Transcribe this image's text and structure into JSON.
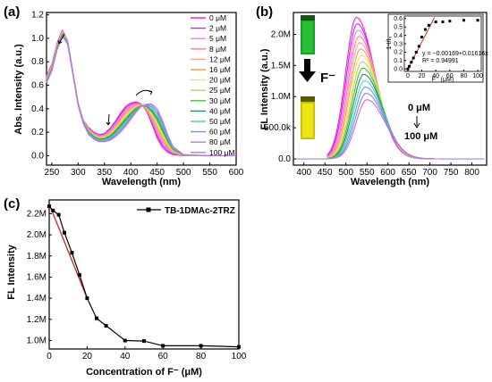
{
  "panels": {
    "a": "(a)",
    "b": "(b)",
    "c": "(c)"
  },
  "colors": {
    "series": [
      "#ff1dce",
      "#ce1dff",
      "#ef7cf3",
      "#ff7f7f",
      "#f5a3a3",
      "#e8a44a",
      "#f0e26c",
      "#a4e24a",
      "#4bb84b",
      "#1f8f5f",
      "#58d0c8",
      "#4fa8e8",
      "#9a86e0",
      "#c070e0"
    ],
    "line_c": "#000000",
    "fit_line": "#c0392b",
    "vial_top": "#22aa22",
    "vial_bottom": "#d8d000"
  },
  "fluoride_label": "F⁻",
  "ann_b": {
    "top": "0 μM",
    "bottom": "100 μM"
  },
  "chart_data": [
    {
      "panel": "a",
      "type": "line",
      "xlabel": "Wavelength (nm)",
      "ylabel": "Abs. Intensity (a.u.)",
      "xlim": [
        240,
        600
      ],
      "ylim": [
        -0.08,
        1.22
      ],
      "xticks": [
        250,
        300,
        350,
        400,
        450,
        500,
        550,
        600
      ],
      "yticks": [
        0.0,
        0.2,
        0.4,
        0.6,
        0.8,
        1.0,
        1.2
      ],
      "ytick_labels": [
        "0.0",
        "0.2",
        "0.4",
        "0.6",
        "0.8",
        "1.0",
        "1.2"
      ],
      "legend": [
        "0 μM",
        "2 μM",
        "5 μM",
        "8 μM",
        "12 μM",
        "16 μM",
        "20 μM",
        "25 μM",
        "30 μM",
        "40 μM",
        "50 μM",
        "60 μM",
        "80 μM",
        "100 μM"
      ],
      "legend_position": "right",
      "series_description": "14 absorption spectra; main band ~270 nm (~1.05), CT band shifts from ~410 nm to ~440 nm with F⁻ addition",
      "series": [
        {
          "name": "0 μM",
          "x": [
            240,
            250,
            260,
            270,
            280,
            290,
            300,
            310,
            320,
            330,
            340,
            350,
            360,
            370,
            380,
            390,
            400,
            410,
            420,
            430,
            440,
            450,
            460,
            470,
            480,
            500,
            550,
            600
          ],
          "values": [
            0.68,
            0.78,
            0.96,
            1.07,
            0.98,
            0.72,
            0.45,
            0.3,
            0.24,
            0.2,
            0.18,
            0.19,
            0.23,
            0.29,
            0.36,
            0.42,
            0.45,
            0.46,
            0.44,
            0.38,
            0.27,
            0.15,
            0.07,
            0.03,
            0.01,
            0.0,
            0.0,
            0.0
          ]
        },
        {
          "name": "100 μM",
          "x": [
            240,
            250,
            260,
            270,
            280,
            290,
            300,
            310,
            320,
            330,
            340,
            350,
            360,
            370,
            380,
            390,
            400,
            410,
            420,
            430,
            440,
            450,
            460,
            470,
            480,
            500,
            550,
            600
          ],
          "values": [
            0.62,
            0.72,
            0.9,
            1.02,
            0.95,
            0.7,
            0.43,
            0.27,
            0.18,
            0.14,
            0.12,
            0.12,
            0.13,
            0.16,
            0.2,
            0.25,
            0.31,
            0.37,
            0.42,
            0.44,
            0.44,
            0.4,
            0.3,
            0.18,
            0.08,
            0.01,
            0.0,
            0.0
          ]
        }
      ]
    },
    {
      "panel": "b",
      "type": "line",
      "xlabel": "Wavelength (nm)",
      "ylabel": "FL Intensity (a.u.)",
      "xlim": [
        375,
        835
      ],
      "ylim": [
        -100000,
        2350000
      ],
      "xticks": [
        400,
        450,
        500,
        550,
        600,
        650,
        700,
        750,
        800
      ],
      "yticks": [
        0,
        500000,
        1000000,
        1500000,
        2000000
      ],
      "ytick_labels": [
        "0.0",
        "500.0k",
        "1.0M",
        "1.5M",
        "2.0M"
      ],
      "series_description": "14 emission spectra; peak ~525 nm (~2.25M) at 0 μM decreasing and red-shifting to ~550 nm (~0.95M) at 100 μM",
      "series": [
        {
          "name": "0 μM",
          "peak_x": 525,
          "peak_y": 2270000
        },
        {
          "name": "100 μM",
          "peak_x": 550,
          "peak_y": 950000
        }
      ]
    },
    {
      "panel": "b-inset",
      "type": "scatter",
      "xlabel": "F⁻ (μM)",
      "ylabel": "1-I/I₀",
      "xlim": [
        -5,
        105
      ],
      "ylim": [
        -0.03,
        0.63
      ],
      "xticks": [
        0,
        20,
        40,
        60,
        80,
        100
      ],
      "yticks": [
        0.0,
        0.1,
        0.2,
        0.3,
        0.4,
        0.5,
        0.6
      ],
      "ytick_labels": [
        "0.0",
        "0.1",
        "0.2",
        "0.3",
        "0.4",
        "0.5",
        "0.6"
      ],
      "fit_equation": "y = −0.00169+0.01616x",
      "r_squared": "R² = 0.94991",
      "x": [
        0,
        2,
        5,
        8,
        12,
        16,
        20,
        25,
        30,
        40,
        50,
        60,
        80,
        100
      ],
      "values": [
        0.0,
        0.03,
        0.08,
        0.13,
        0.2,
        0.27,
        0.38,
        0.47,
        0.52,
        0.56,
        0.56,
        0.57,
        0.58,
        0.58
      ]
    },
    {
      "panel": "c",
      "type": "line",
      "xlabel": "Concentration of F⁻ (μM)",
      "ylabel": "FL Intensity",
      "xlim": [
        0,
        100
      ],
      "ylim": [
        920000,
        2330000
      ],
      "xticks": [
        0,
        20,
        40,
        60,
        80,
        100
      ],
      "yticks": [
        1000000,
        1200000,
        1400000,
        1600000,
        1800000,
        2000000,
        2200000
      ],
      "ytick_labels": [
        "1.0M",
        "1.2M",
        "1.4M",
        "1.6M",
        "1.8M",
        "2.0M",
        "2.2M"
      ],
      "legend": "TB-1DMAc-2TRZ",
      "legend_position": "top-right",
      "x": [
        0,
        2,
        5,
        8,
        12,
        16,
        20,
        25,
        30,
        40,
        50,
        60,
        80,
        100
      ],
      "values": [
        2270000,
        2230000,
        2190000,
        2020000,
        1830000,
        1620000,
        1400000,
        1210000,
        1140000,
        1000000,
        995000,
        950000,
        950000,
        940000
      ]
    }
  ]
}
